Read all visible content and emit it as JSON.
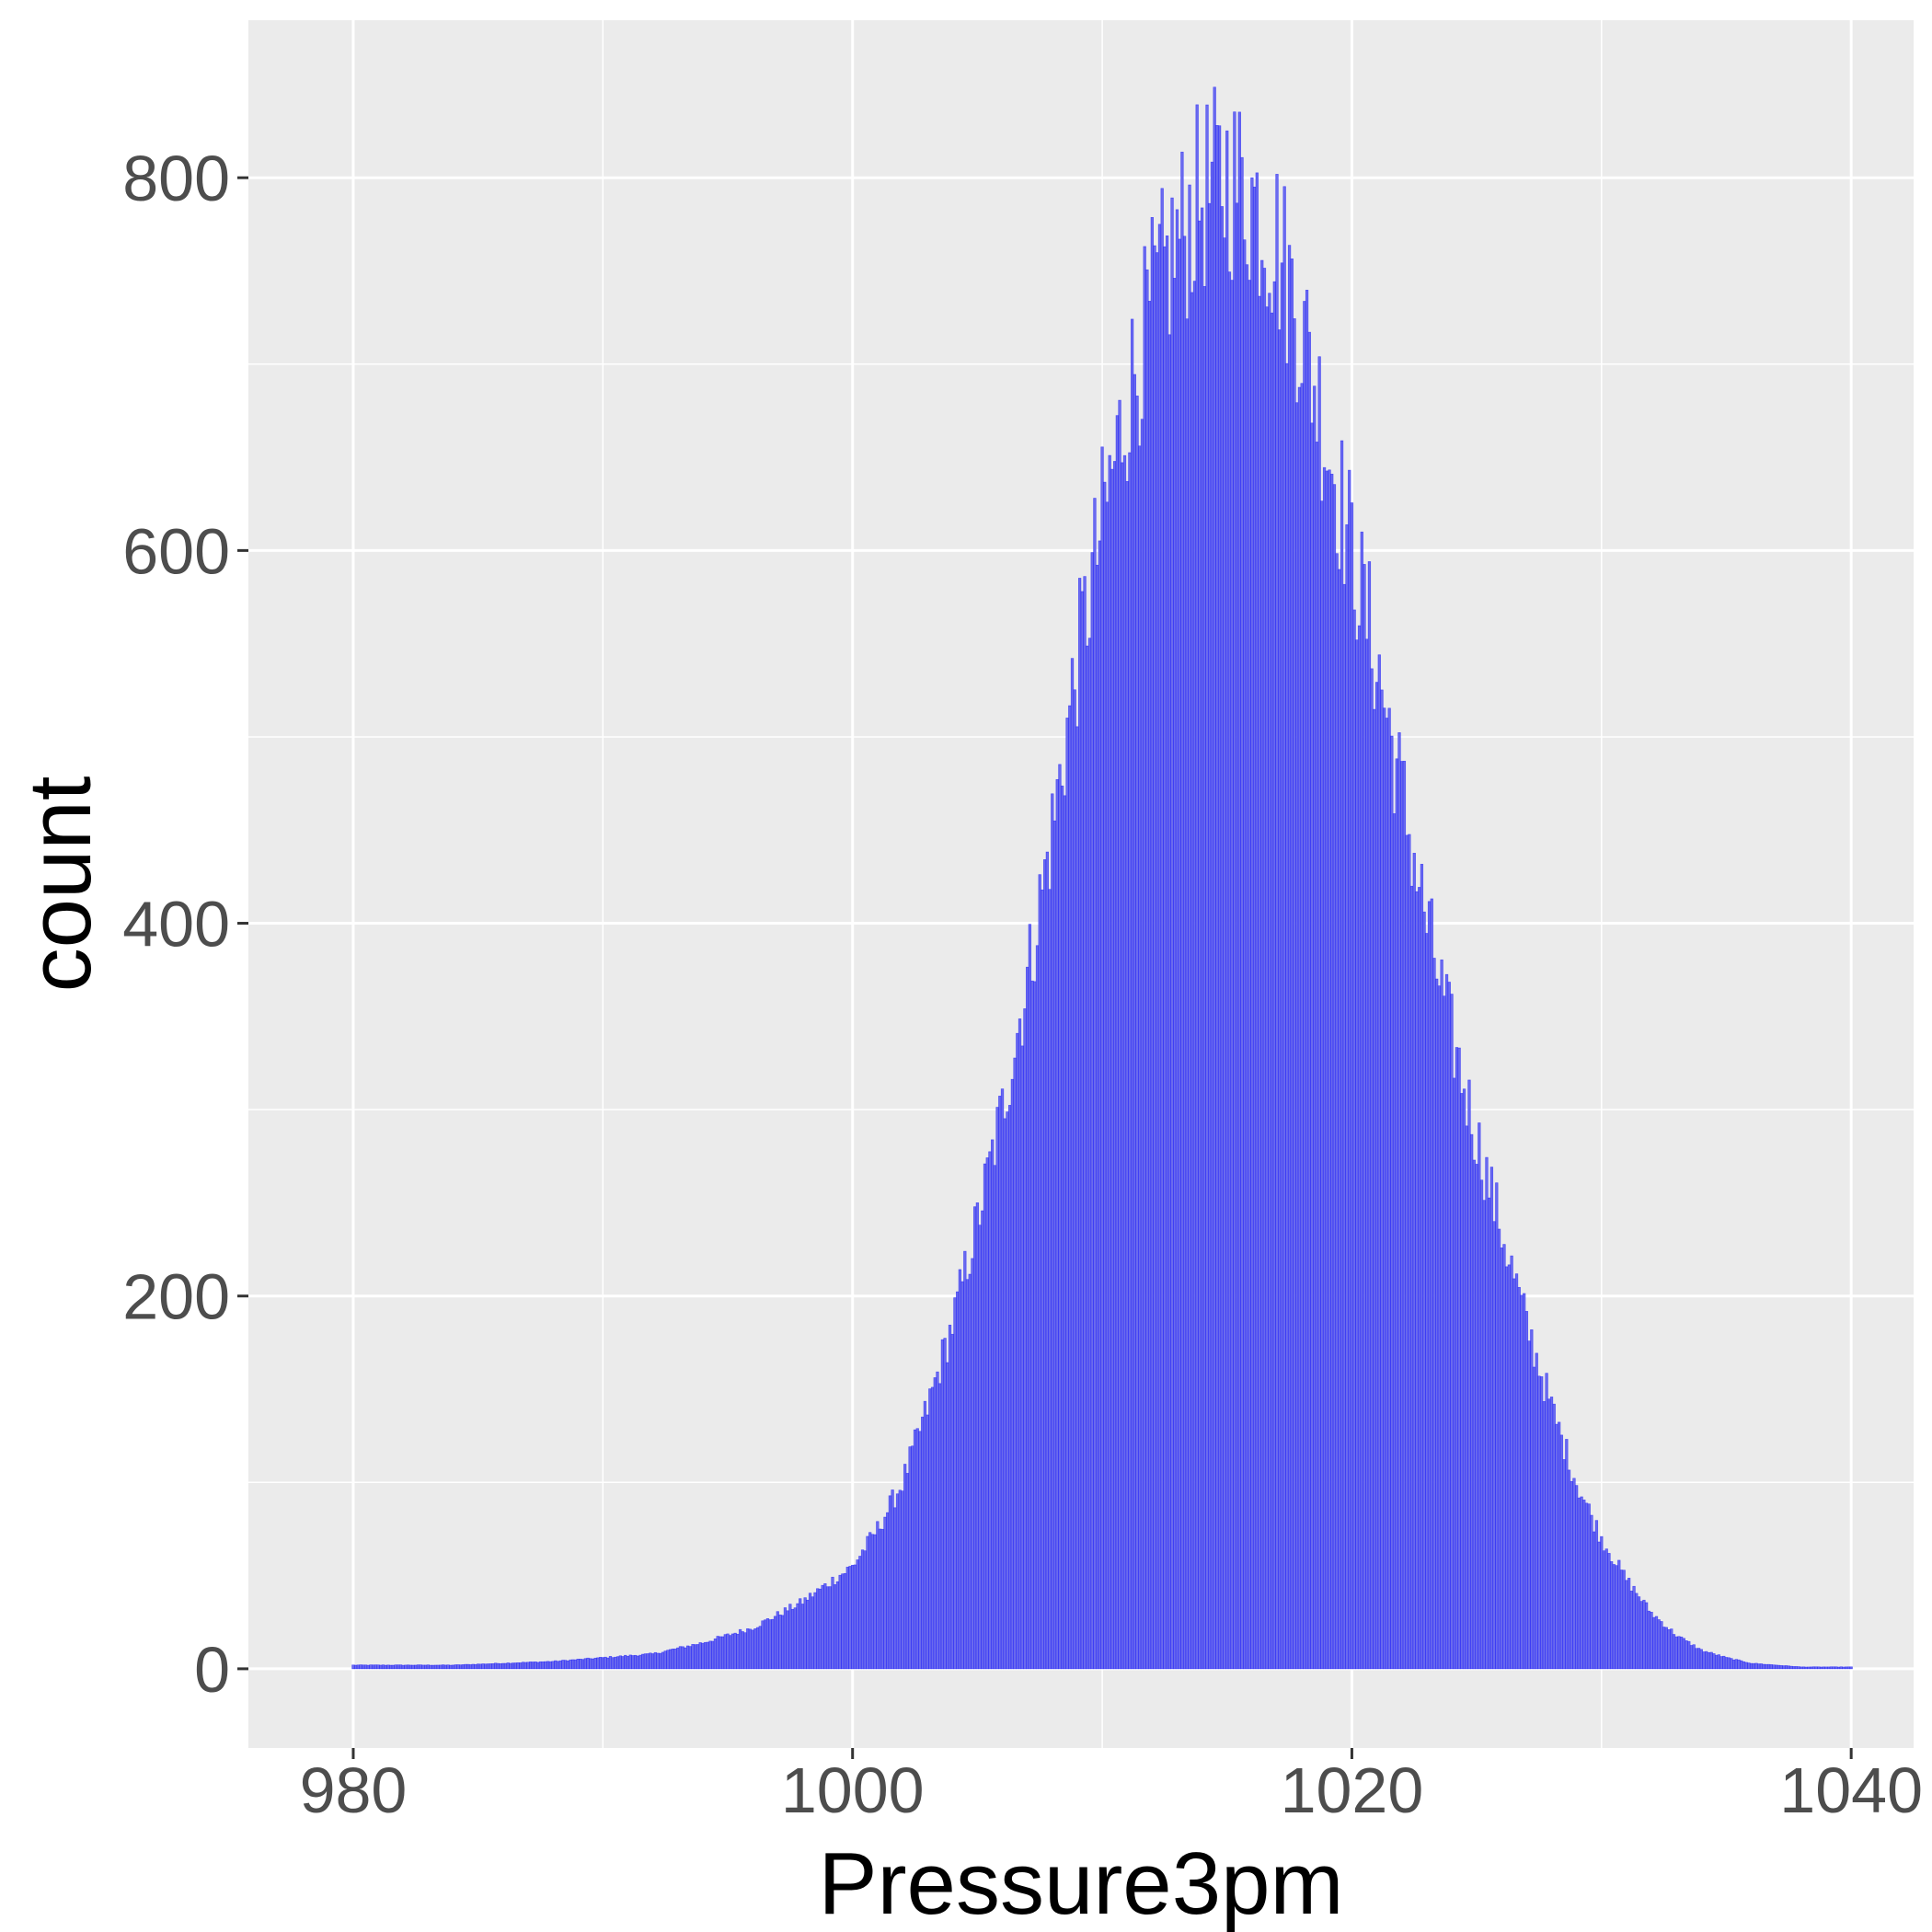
{
  "chart_data": {
    "type": "bar",
    "title": "",
    "xlabel": "Pressure3pm",
    "ylabel": "count",
    "xlim": [
      975.8,
      1042.5
    ],
    "ylim": [
      -42.5,
      884.5
    ],
    "x_ticks": [
      980,
      1000,
      1020,
      1040
    ],
    "x_tick_labels": [
      "980",
      "1000",
      "1020",
      "1040"
    ],
    "y_ticks": [
      0,
      200,
      400,
      600,
      800
    ],
    "y_tick_labels": [
      "0",
      "200",
      "400",
      "600",
      "800"
    ],
    "bin_width": 0.1,
    "grid": true,
    "legend": "none",
    "colors": {
      "bar_fill": "#6a6aee",
      "bar_outline": "#0000ff",
      "panel": "#ebebeb",
      "grid": "#ffffff"
    },
    "bins": [
      {
        "x": 980,
        "count": 2
      },
      {
        "x": 982,
        "count": 2
      },
      {
        "x": 984,
        "count": 2
      },
      {
        "x": 986,
        "count": 3
      },
      {
        "x": 988,
        "count": 4
      },
      {
        "x": 990,
        "count": 6
      },
      {
        "x": 992,
        "count": 8
      },
      {
        "x": 994,
        "count": 14
      },
      {
        "x": 996,
        "count": 22
      },
      {
        "x": 998,
        "count": 36
      },
      {
        "x": 1000,
        "count": 55
      },
      {
        "x": 1001,
        "count": 75
      },
      {
        "x": 1002,
        "count": 100
      },
      {
        "x": 1003,
        "count": 140
      },
      {
        "x": 1004,
        "count": 185
      },
      {
        "x": 1005,
        "count": 240
      },
      {
        "x": 1006,
        "count": 300
      },
      {
        "x": 1007,
        "count": 370
      },
      {
        "x": 1008,
        "count": 450
      },
      {
        "x": 1009,
        "count": 540
      },
      {
        "x": 1010,
        "count": 615
      },
      {
        "x": 1011,
        "count": 680
      },
      {
        "x": 1012,
        "count": 730
      },
      {
        "x": 1013,
        "count": 765
      },
      {
        "x": 1014,
        "count": 790
      },
      {
        "x": 1015,
        "count": 800
      },
      {
        "x": 1016,
        "count": 790
      },
      {
        "x": 1017,
        "count": 765
      },
      {
        "x": 1018,
        "count": 720
      },
      {
        "x": 1019,
        "count": 660
      },
      {
        "x": 1020,
        "count": 600
      },
      {
        "x": 1021,
        "count": 540
      },
      {
        "x": 1022,
        "count": 470
      },
      {
        "x": 1023,
        "count": 400
      },
      {
        "x": 1024,
        "count": 340
      },
      {
        "x": 1025,
        "count": 285
      },
      {
        "x": 1026,
        "count": 235
      },
      {
        "x": 1027,
        "count": 185
      },
      {
        "x": 1028,
        "count": 140
      },
      {
        "x": 1029,
        "count": 100
      },
      {
        "x": 1030,
        "count": 70
      },
      {
        "x": 1031,
        "count": 48
      },
      {
        "x": 1032,
        "count": 30
      },
      {
        "x": 1033,
        "count": 18
      },
      {
        "x": 1034,
        "count": 10
      },
      {
        "x": 1035,
        "count": 6
      },
      {
        "x": 1036,
        "count": 3
      },
      {
        "x": 1038,
        "count": 1
      },
      {
        "x": 1040,
        "count": 1
      }
    ]
  }
}
